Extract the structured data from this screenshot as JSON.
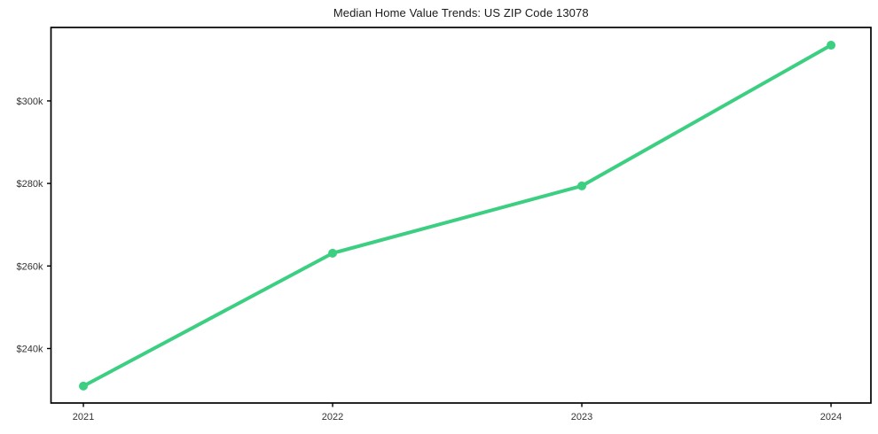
{
  "chart_data": {
    "type": "line",
    "title": "Median Home Value Trends: US ZIP Code 13078",
    "x": [
      2021,
      2022,
      2023,
      2024
    ],
    "x_tick_labels": [
      "2021",
      "2022",
      "2023",
      "2024"
    ],
    "series": [
      {
        "name": "median-home-value",
        "values": [
          230900,
          263100,
          279400,
          313500
        ],
        "color": "#3ccf82"
      }
    ],
    "y_ticks": [
      240000,
      260000,
      280000,
      300000
    ],
    "y_tick_labels": [
      "$240k",
      "$260k",
      "$280k",
      "$300k"
    ],
    "xlim": [
      2020.87,
      2024.16
    ],
    "ylim": [
      226800,
      317800
    ],
    "grid": false,
    "legend_position": "none",
    "background_color": "#ffffff",
    "frame_color": "#000000",
    "text_color": "#333333",
    "marker": "circle"
  }
}
